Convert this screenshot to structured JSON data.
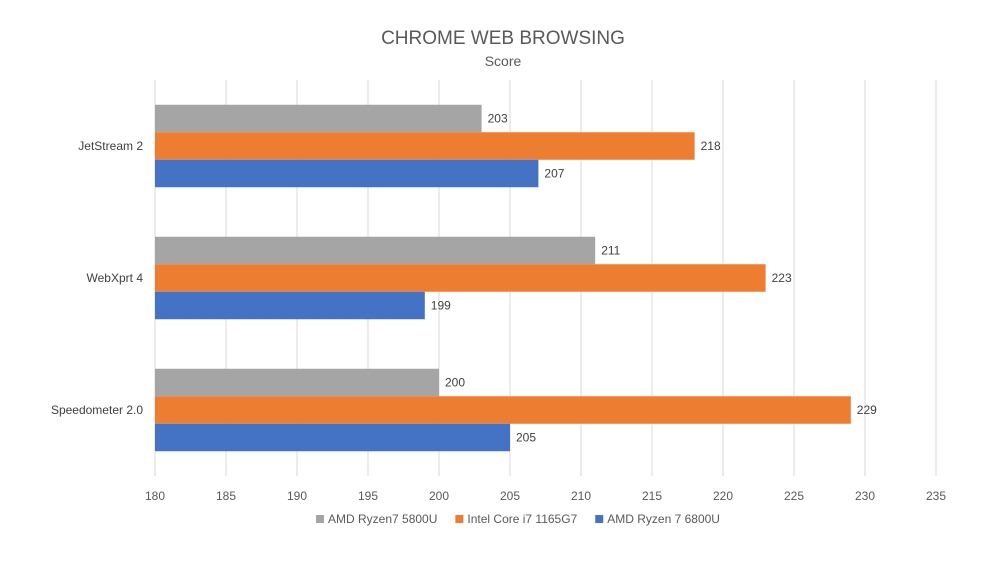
{
  "chart_data": {
    "type": "bar",
    "orientation": "horizontal",
    "title": "CHROME WEB BROWSING",
    "subtitle": "Score",
    "categories": [
      "JetStream 2",
      "WebXprt 4",
      "Speedometer 2.0"
    ],
    "series": [
      {
        "name": "AMD Ryzen7 5800U",
        "color": "#a5a5a5",
        "values": [
          203,
          211,
          200
        ]
      },
      {
        "name": "Intel Core i7 1165G7",
        "color": "#ed7d31",
        "values": [
          218,
          223,
          229
        ]
      },
      {
        "name": "AMD Ryzen 7 6800U",
        "color": "#4472c4",
        "values": [
          207,
          199,
          205
        ]
      }
    ],
    "xlim": [
      180,
      235
    ],
    "xticks": [
      180,
      185,
      190,
      195,
      200,
      205,
      210,
      215,
      220,
      225,
      230,
      235
    ],
    "grid": "vertical",
    "legend": "bottom",
    "data_labels": true
  }
}
